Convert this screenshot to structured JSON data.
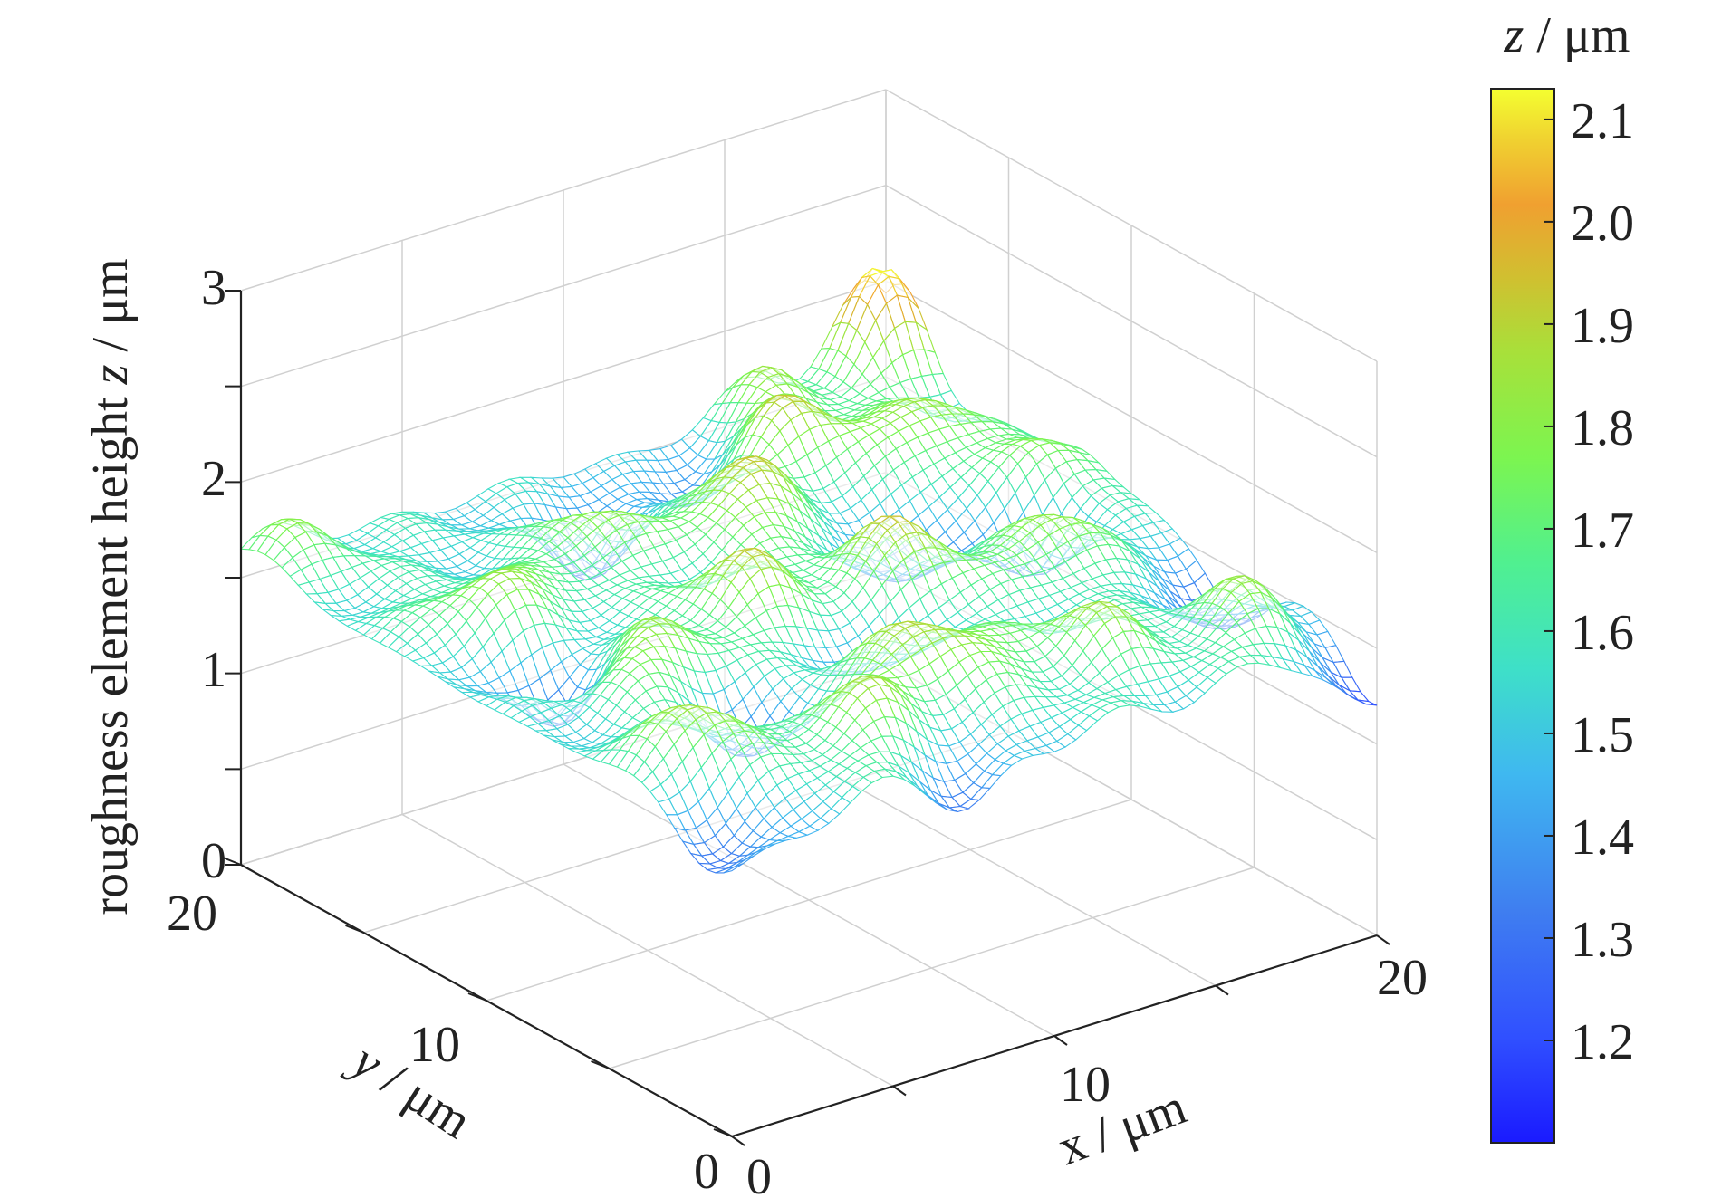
{
  "chart_data": {
    "type": "surface3d",
    "title": "",
    "xlabel": {
      "var": "x",
      "unit": " / μm"
    },
    "ylabel": {
      "var": "y",
      "unit": " / μm"
    },
    "zlabel": {
      "prefix": "roughness element height ",
      "var": "z",
      "unit": " / μm"
    },
    "colorbar_label": {
      "var": "z",
      "unit": " / μm"
    },
    "xlim": [
      0,
      20
    ],
    "ylim": [
      0,
      20
    ],
    "zlim": [
      0,
      3
    ],
    "x_ticks": [
      "0",
      "10",
      "20"
    ],
    "y_ticks": [
      "0",
      "10",
      "20"
    ],
    "z_ticks": [
      "0",
      "1",
      "2",
      "3"
    ],
    "colorbar_range": [
      1.1,
      2.13
    ],
    "colorbar_ticks": [
      "1.2",
      "1.3",
      "1.4",
      "1.5",
      "1.6",
      "1.7",
      "1.8",
      "1.9",
      "2.0",
      "2.1"
    ],
    "colormap": "turbo",
    "grid": true,
    "surface": {
      "base_height": 1.55,
      "min_height": 1.1,
      "max_height": 2.13,
      "grid_points": 61,
      "peaks": [
        {
          "x": 2.0,
          "y": 4.0,
          "amp": 0.32,
          "sigma": 1.1
        },
        {
          "x": 6.0,
          "y": 2.5,
          "amp": 0.28,
          "sigma": 1.3
        },
        {
          "x": 9.5,
          "y": 4.5,
          "amp": 0.35,
          "sigma": 1.5
        },
        {
          "x": 13.5,
          "y": 3.0,
          "amp": 0.27,
          "sigma": 1.1
        },
        {
          "x": 17.5,
          "y": 2.0,
          "amp": 0.25,
          "sigma": 1.2
        },
        {
          "x": 4.0,
          "y": 8.5,
          "amp": 0.3,
          "sigma": 1.3
        },
        {
          "x": 8.0,
          "y": 10.0,
          "amp": 0.33,
          "sigma": 1.2
        },
        {
          "x": 12.0,
          "y": 9.0,
          "amp": 0.36,
          "sigma": 1.3
        },
        {
          "x": 16.0,
          "y": 8.0,
          "amp": 0.3,
          "sigma": 1.1
        },
        {
          "x": 19.0,
          "y": 12.0,
          "amp": 0.28,
          "sigma": 1.0
        },
        {
          "x": 3.0,
          "y": 13.5,
          "amp": 0.3,
          "sigma": 1.2
        },
        {
          "x": 7.0,
          "y": 15.0,
          "amp": 0.27,
          "sigma": 1.1
        },
        {
          "x": 11.0,
          "y": 14.0,
          "amp": 0.38,
          "sigma": 1.3
        },
        {
          "x": 14.5,
          "y": 16.5,
          "amp": 0.35,
          "sigma": 1.2
        },
        {
          "x": 17.5,
          "y": 15.0,
          "amp": 0.32,
          "sigma": 1.1
        },
        {
          "x": 19.3,
          "y": 19.3,
          "amp": 0.55,
          "sigma": 1.1
        },
        {
          "x": 15.5,
          "y": 19.0,
          "amp": 0.22,
          "sigma": 1.0
        },
        {
          "x": 1.0,
          "y": 19.0,
          "amp": 0.2,
          "sigma": 1.2
        },
        {
          "x": 5.0,
          "y": 6.0,
          "amp": -0.3,
          "sigma": 1.0
        },
        {
          "x": 10.0,
          "y": 7.0,
          "amp": -0.28,
          "sigma": 1.1
        },
        {
          "x": 14.0,
          "y": 12.0,
          "amp": -0.3,
          "sigma": 1.0
        },
        {
          "x": 9.0,
          "y": 17.5,
          "amp": -0.32,
          "sigma": 1.0
        },
        {
          "x": 17.0,
          "y": 10.5,
          "amp": -0.26,
          "sigma": 1.0
        },
        {
          "x": 2.5,
          "y": 10.5,
          "amp": -0.3,
          "sigma": 1.0
        },
        {
          "x": 19.5,
          "y": 5.5,
          "amp": -0.35,
          "sigma": 1.1
        },
        {
          "x": 7.5,
          "y": 0.5,
          "amp": -0.28,
          "sigma": 1.0
        },
        {
          "x": 0.5,
          "y": 1.0,
          "amp": -0.25,
          "sigma": 1.2
        },
        {
          "x": 12.5,
          "y": 18.5,
          "amp": -0.22,
          "sigma": 1.0
        },
        {
          "x": 19.8,
          "y": 0.2,
          "amp": -0.4,
          "sigma": 1.1
        }
      ]
    }
  }
}
